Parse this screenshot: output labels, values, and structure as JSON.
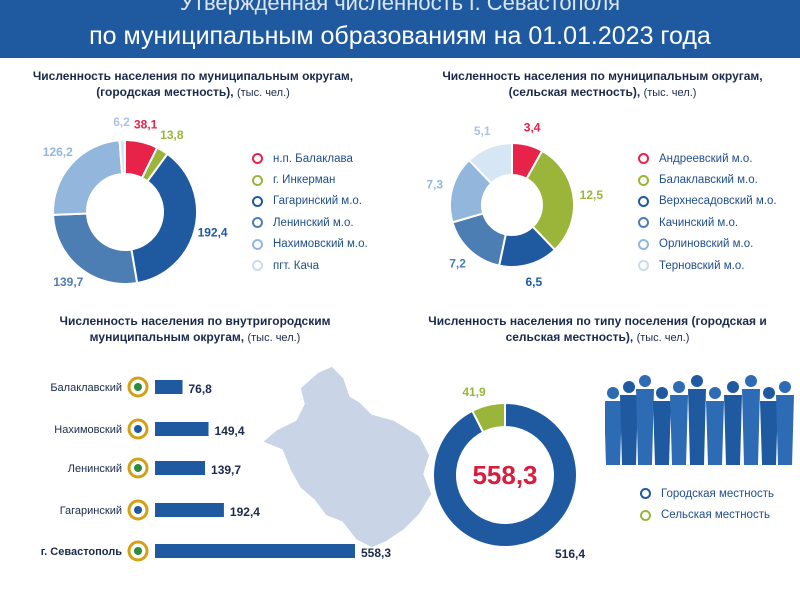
{
  "header": {
    "line1": "Утвержденная численность г. Севастополя",
    "line2": "по муниципальным образованиям на 01.01.2023 года"
  },
  "chart_data": [
    {
      "type": "pie",
      "title": "Численность населения по муниципальным округам, (городская местность),",
      "unit": "(тыс. чел.)",
      "labels": [
        "н.п. Балаклава",
        "г. Инкерман",
        "Гагаринский м.о.",
        "Ленинский м.о.",
        "Нахимовский м.о.",
        "пгт. Кача"
      ],
      "values": [
        38.1,
        13.8,
        192.4,
        139.7,
        126.2,
        6.2
      ],
      "value_labels": [
        "38,1",
        "13,8",
        "192,4",
        "139,7",
        "126,2",
        "6,2"
      ],
      "colors": [
        "#e8234a",
        "#9ab53a",
        "#1f5aa0",
        "#4d7eb3",
        "#93b7dc",
        "#d6e6f5"
      ]
    },
    {
      "type": "pie",
      "title": "Численность населения по муниципальным округам, (сельская местность),",
      "unit": "(тыс. чел.)",
      "labels": [
        "Андреевский м.о.",
        "Балаклавский м.о.",
        "Верхнесадовский м.о.",
        "Качинский м.о.",
        "Орлиновский м.о.",
        "Терновский м.о."
      ],
      "values": [
        3.4,
        12.5,
        6.5,
        7.2,
        7.3,
        5.1
      ],
      "value_labels": [
        "3,4",
        "12,5",
        "6,5",
        "7,2",
        "7,3",
        "5,1"
      ],
      "colors": [
        "#e8234a",
        "#9ab53a",
        "#1f5aa0",
        "#4d7eb3",
        "#93b7dc",
        "#d6e6f5"
      ]
    },
    {
      "type": "bar",
      "orientation": "horizontal",
      "title": "Численность населения по внутригородским муниципальным округам,",
      "unit": "(тыс. чел.)",
      "categories": [
        "Балаклавский",
        "Нахимовский",
        "Ленинский",
        "Гагаринский",
        "г. Севастополь"
      ],
      "values": [
        76.8,
        149.4,
        139.7,
        192.4,
        558.3
      ],
      "value_labels": [
        "76,8",
        "149,4",
        "139,7",
        "192,4",
        "558,3"
      ],
      "color": "#1f5aa0"
    },
    {
      "type": "pie",
      "title": "Численность населения по типу поселения (городская и сельская местность),",
      "unit": "(тыс. чел.)",
      "labels": [
        "Городская местность",
        "Сельская местность"
      ],
      "values": [
        516.4,
        41.9
      ],
      "value_labels": [
        "516,4",
        "41,9"
      ],
      "total_label": "558,3",
      "colors": [
        "#1f5aa0",
        "#9ab53a"
      ]
    }
  ]
}
